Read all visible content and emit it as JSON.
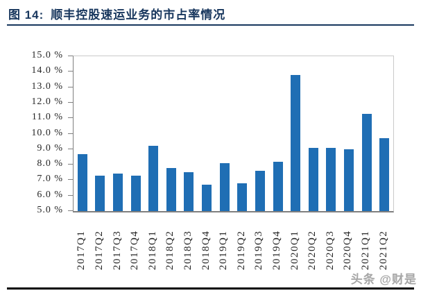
{
  "header": {
    "figure_label": "图 14:",
    "title_text": "顺丰控股速运业务的市占率情况"
  },
  "watermark": "头条 @财是",
  "colors": {
    "bar": "#1F6EB4",
    "title": "#17365D",
    "axis": "#7f7f7f",
    "plot_border": "#c9c9c9"
  },
  "chart_data": {
    "type": "bar",
    "title": "顺丰控股速运业务的市占率情况",
    "categories": [
      "2017Q1",
      "2017Q2",
      "2017Q3",
      "2017Q4",
      "2018Q1",
      "2018Q2",
      "2018Q3",
      "2018Q4",
      "2019Q1",
      "2019Q2",
      "2019Q3",
      "2019Q4",
      "2020Q1",
      "2020Q2",
      "2020Q3",
      "2020Q4",
      "2021Q1",
      "2021Q2"
    ],
    "values": [
      8.7,
      7.3,
      7.4,
      7.3,
      9.2,
      7.8,
      7.5,
      6.7,
      8.1,
      6.8,
      7.6,
      8.2,
      13.8,
      9.1,
      9.1,
      9.0,
      11.3,
      9.7
    ],
    "unit": "%",
    "xlabel": "",
    "ylabel": "",
    "ylim": [
      5.0,
      15.0
    ],
    "ytick_step": 1.0,
    "ytick_labels": [
      "15.0 %",
      "14.0 %",
      "13.0 %",
      "12.0 %",
      "11.0 %",
      "10.0 %",
      "9.0 %",
      "8.0 %",
      "7.0 %",
      "6.0 %",
      "5.0 %"
    ],
    "grid": false,
    "legend": null,
    "bar_color": "#1F6EB4"
  }
}
